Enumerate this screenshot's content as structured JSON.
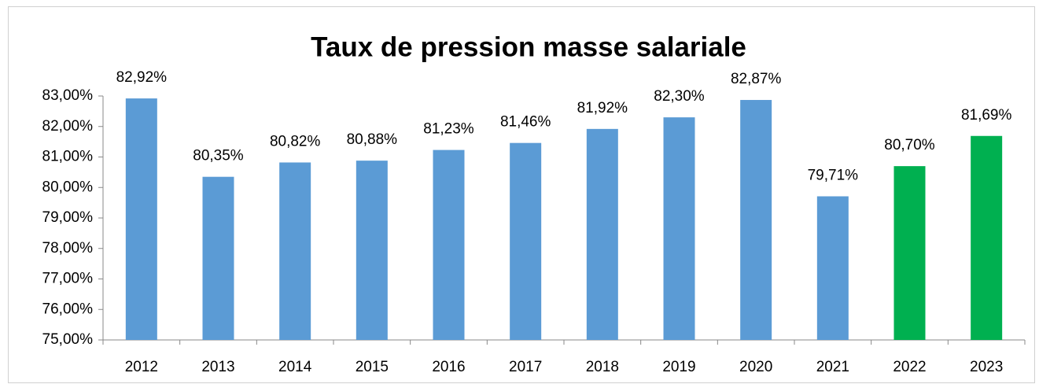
{
  "chart_data": {
    "type": "bar",
    "title": "Taux de pression masse salariale",
    "categories": [
      "2012",
      "2013",
      "2014",
      "2015",
      "2016",
      "2017",
      "2018",
      "2019",
      "2020",
      "2021",
      "2022",
      "2023"
    ],
    "values": [
      82.92,
      80.35,
      80.82,
      80.88,
      81.23,
      81.46,
      81.92,
      82.3,
      82.87,
      79.71,
      80.7,
      81.69
    ],
    "value_labels": [
      "82,92%",
      "80,35%",
      "80,82%",
      "80,88%",
      "81,23%",
      "81,46%",
      "81,92%",
      "82,30%",
      "82,87%",
      "79,71%",
      "80,70%",
      "81,69%"
    ],
    "colors": [
      "#5b9bd5",
      "#5b9bd5",
      "#5b9bd5",
      "#5b9bd5",
      "#5b9bd5",
      "#5b9bd5",
      "#5b9bd5",
      "#5b9bd5",
      "#5b9bd5",
      "#5b9bd5",
      "#00b050",
      "#00b050"
    ],
    "ylim": [
      75,
      83
    ],
    "yticks": [
      {
        "value": 75,
        "label": "75,00%"
      },
      {
        "value": 76,
        "label": "76,00%"
      },
      {
        "value": 77,
        "label": "77,00%"
      },
      {
        "value": 78,
        "label": "78,00%"
      },
      {
        "value": 79,
        "label": "79,00%"
      },
      {
        "value": 80,
        "label": "80,00%"
      },
      {
        "value": 81,
        "label": "81,00%"
      },
      {
        "value": 82,
        "label": "82,00%"
      },
      {
        "value": 83,
        "label": "83,00%"
      }
    ],
    "grid": false
  }
}
